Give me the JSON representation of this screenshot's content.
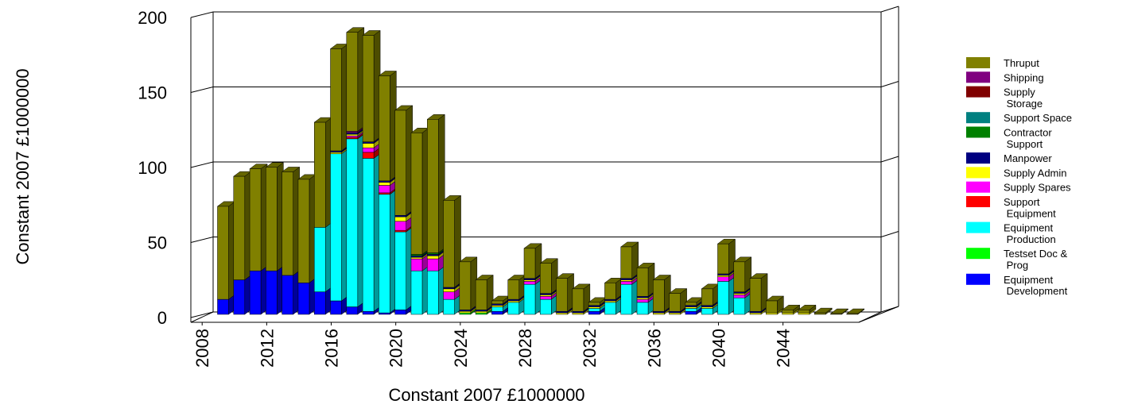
{
  "chart_data": {
    "type": "bar3d_stacked",
    "xlabel": "Constant 2007 £1000000",
    "ylabel": "Constant 2007 £1000000",
    "x": [
      2009,
      2010,
      2011,
      2012,
      2013,
      2014,
      2015,
      2016,
      2017,
      2018,
      2019,
      2020,
      2021,
      2022,
      2023,
      2024,
      2025,
      2026,
      2027,
      2028,
      2029,
      2030,
      2031,
      2032,
      2033,
      2034,
      2035,
      2036,
      2037,
      2038,
      2039,
      2040,
      2041,
      2042,
      2043,
      2044,
      2045,
      2046,
      2047,
      2048
    ],
    "xlim": [
      2007.3,
      2048.7
    ],
    "xticks": [
      2008,
      2012,
      2016,
      2020,
      2024,
      2028,
      2032,
      2036,
      2040,
      2044
    ],
    "ylim": [
      0,
      200
    ],
    "yticks": [
      0,
      50,
      100,
      150,
      200
    ],
    "grid": true,
    "legend": "right",
    "series": [
      {
        "name": "Thruput",
        "color": "#808000",
        "values": [
          62,
          69,
          68,
          69,
          69,
          69,
          70,
          68,
          66,
          71,
          70,
          70,
          81,
          89,
          58,
          32,
          20,
          2,
          13,
          20,
          20,
          22,
          15,
          2,
          11,
          21,
          19,
          21,
          12,
          2,
          11,
          20,
          20,
          22,
          8,
          2,
          2,
          1,
          0.5,
          0.5
        ]
      },
      {
        "name": "Shipping",
        "color": "#800080",
        "values": [
          0,
          0,
          0,
          0,
          0,
          0,
          0,
          0,
          1,
          0,
          0,
          0,
          0,
          0,
          0,
          0,
          0,
          0,
          0,
          0,
          0,
          0,
          0,
          0,
          0,
          0,
          0,
          0,
          0,
          0,
          0,
          0,
          0,
          0,
          0,
          0,
          0,
          0,
          0,
          0
        ]
      },
      {
        "name": "Supply Storage",
        "color": "#800000",
        "values": [
          0,
          0,
          0,
          0,
          0,
          0,
          0,
          0,
          0,
          0,
          0,
          0,
          0,
          0,
          0,
          0,
          0,
          0,
          0,
          0,
          0,
          0,
          0,
          0,
          0,
          0,
          0,
          0,
          0,
          0,
          0,
          0,
          0,
          0,
          0,
          0,
          0,
          0,
          0,
          0
        ]
      },
      {
        "name": "Support Space",
        "color": "#008080",
        "values": [
          0,
          0,
          0,
          0,
          0,
          0,
          0,
          0,
          0,
          0,
          0,
          0,
          0,
          0,
          0,
          0,
          0,
          0,
          0,
          0,
          0,
          0,
          0,
          0,
          0,
          0,
          0,
          0,
          0,
          0,
          0,
          0,
          0,
          0,
          0,
          0,
          0,
          0,
          0,
          0
        ]
      },
      {
        "name": "Contractor Support",
        "color": "#008000",
        "values": [
          0,
          0,
          0,
          0,
          0,
          0,
          0,
          0,
          0,
          0,
          0,
          0,
          1,
          1,
          0,
          0,
          0,
          0,
          0,
          0,
          0,
          0,
          0,
          0,
          0,
          0,
          0,
          0,
          0,
          0,
          0,
          0,
          0,
          0,
          0,
          0,
          0,
          0,
          0,
          0
        ]
      },
      {
        "name": "Manpower",
        "color": "#000080",
        "values": [
          0,
          0,
          0,
          0,
          0,
          0,
          0,
          1,
          1,
          1,
          1,
          1,
          1,
          1,
          1,
          1,
          1,
          1,
          1,
          1,
          1,
          1,
          1,
          1,
          1,
          1,
          1,
          1,
          1,
          1,
          1,
          1,
          1,
          1,
          0,
          0,
          0,
          0,
          0,
          0
        ]
      },
      {
        "name": "Supply Admin",
        "color": "#ffff00",
        "values": [
          0,
          0,
          0,
          0,
          0,
          0,
          0,
          1,
          1,
          3,
          2,
          3,
          1,
          2,
          2,
          1,
          1,
          1,
          1,
          1,
          1,
          1,
          1,
          1,
          1,
          1,
          1,
          1,
          1,
          1,
          1,
          1,
          1,
          1,
          1,
          1,
          1,
          0,
          0,
          0
        ]
      },
      {
        "name": "Supply Spares",
        "color": "#ff00ff",
        "values": [
          0,
          0,
          0,
          0,
          0,
          0,
          0,
          0,
          1,
          3,
          5,
          6,
          8,
          8,
          5,
          0,
          0,
          0,
          0,
          2,
          2,
          0,
          0,
          0,
          0,
          2,
          2,
          0,
          0,
          0,
          0,
          3,
          2,
          0,
          0,
          0,
          0,
          0,
          0,
          0
        ]
      },
      {
        "name": "Support Equipment",
        "color": "#ff0000",
        "values": [
          0,
          0,
          0,
          0,
          0,
          0,
          0,
          0,
          1,
          4,
          1,
          1,
          0,
          0,
          0,
          0,
          0,
          0,
          0,
          0,
          0,
          0,
          0,
          0,
          0,
          0,
          0,
          0,
          0,
          0,
          0,
          0,
          0,
          0,
          0,
          0,
          0,
          0,
          0,
          0
        ]
      },
      {
        "name": "Equipment Production",
        "color": "#00ffff",
        "values": [
          0,
          0,
          0,
          0,
          0,
          0,
          43,
          98,
          112,
          102,
          79,
          52,
          29,
          29,
          10,
          0,
          0,
          3,
          8,
          20,
          10,
          0,
          0,
          2,
          8,
          20,
          8,
          0,
          0,
          2,
          4,
          22,
          11,
          0,
          0,
          0,
          0,
          0,
          0,
          0
        ]
      },
      {
        "name": "Testset Doc & Prog",
        "color": "#00ff00",
        "values": [
          0,
          0,
          0,
          0,
          0,
          0,
          0,
          0,
          0,
          0,
          0,
          0,
          0,
          0,
          0,
          1,
          1,
          0,
          0,
          0,
          0,
          0,
          0,
          0,
          0,
          0,
          0,
          0,
          0,
          0,
          0,
          0,
          0,
          0,
          0,
          0,
          0,
          0,
          0,
          0
        ]
      },
      {
        "name": "Equipment Development",
        "color": "#0000ff",
        "values": [
          10,
          23,
          29,
          29,
          26,
          21,
          15,
          9,
          5,
          2,
          1,
          3,
          0,
          0,
          0,
          0,
          0,
          2,
          0,
          0,
          0,
          0,
          0,
          2,
          0,
          0,
          0,
          0,
          0,
          2,
          0,
          0,
          0,
          0,
          0,
          0,
          0,
          0,
          0,
          0
        ]
      }
    ]
  }
}
